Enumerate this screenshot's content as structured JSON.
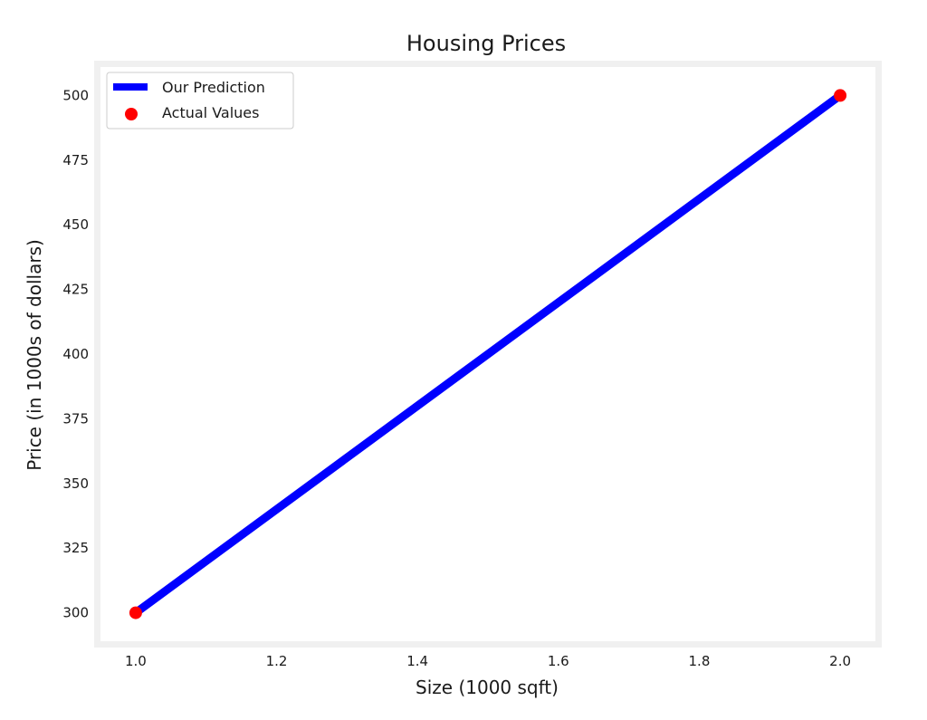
{
  "chart_data": {
    "type": "line",
    "title": "Housing Prices",
    "xlabel": "Size (1000 sqft)",
    "ylabel": "Price (in 1000s of dollars)",
    "xlim": [
      0.95,
      2.05
    ],
    "ylim": [
      289,
      511
    ],
    "xticks": [
      1.0,
      1.2,
      1.4,
      1.6,
      1.8,
      2.0
    ],
    "xtick_labels": [
      "1.0",
      "1.2",
      "1.4",
      "1.6",
      "1.8",
      "2.0"
    ],
    "yticks": [
      300,
      325,
      350,
      375,
      400,
      425,
      450,
      475,
      500
    ],
    "ytick_labels": [
      "300",
      "325",
      "350",
      "375",
      "400",
      "425",
      "450",
      "475",
      "500"
    ],
    "grid": false,
    "legend_position": "top-left",
    "series": [
      {
        "name": "Our Prediction",
        "kind": "line",
        "color": "#0000ff",
        "x": [
          1.0,
          2.0
        ],
        "y": [
          300,
          500
        ]
      },
      {
        "name": "Actual Values",
        "kind": "scatter",
        "color": "#ff0000",
        "x": [
          1.0,
          2.0
        ],
        "y": [
          300,
          500
        ]
      }
    ],
    "frame_color": "#f0f0f0"
  }
}
